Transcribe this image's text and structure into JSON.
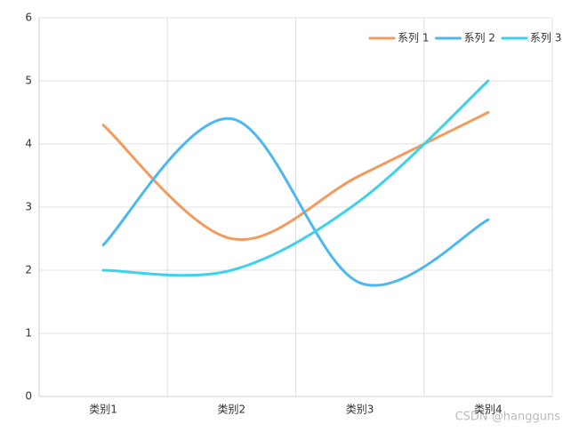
{
  "chart_data": {
    "type": "line",
    "categories": [
      "类别1",
      "类别2",
      "类别3",
      "类别4"
    ],
    "series": [
      {
        "name": "系列 1",
        "color": "#f39a5e",
        "values": [
          4.3,
          2.5,
          3.5,
          4.5
        ]
      },
      {
        "name": "系列 2",
        "color": "#4db8f0",
        "values": [
          2.4,
          4.4,
          1.8,
          2.8
        ]
      },
      {
        "name": "系列 3",
        "color": "#3ed2ea",
        "values": [
          2.0,
          2.0,
          3.1,
          5.0
        ]
      }
    ],
    "ylim": [
      0,
      6
    ],
    "yticks": [
      0,
      1,
      2,
      3,
      4,
      5,
      6
    ],
    "grid": true,
    "smooth": true,
    "legend": "top-right",
    "watermark": "CSDN @hangguns"
  }
}
